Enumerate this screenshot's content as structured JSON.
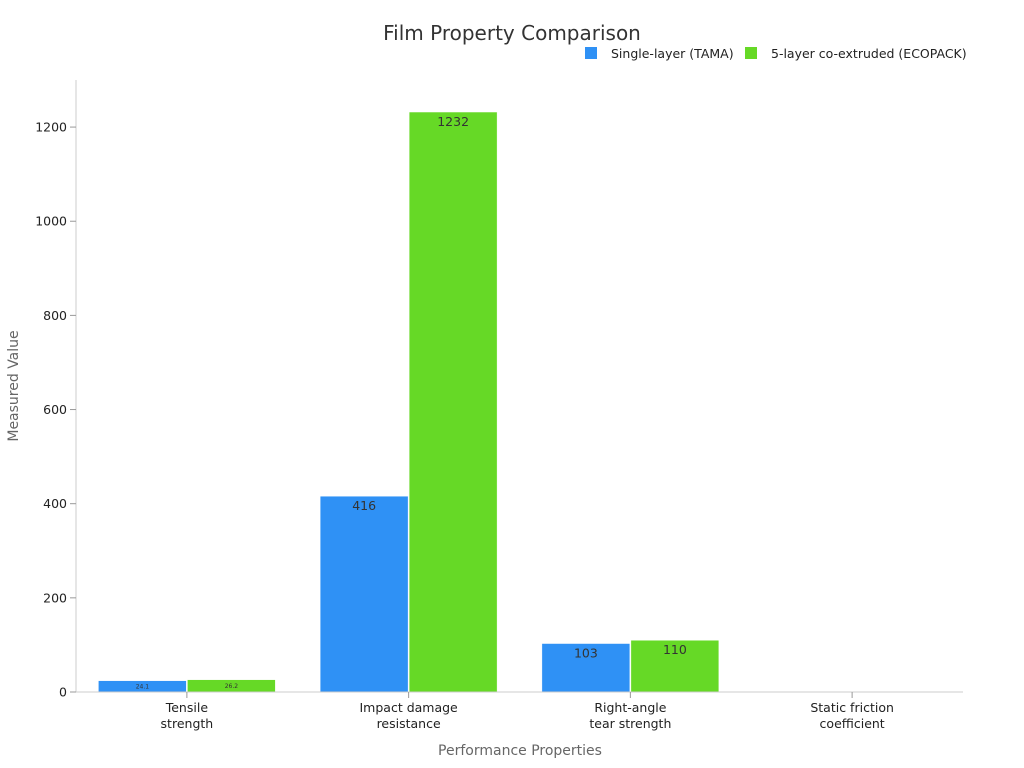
{
  "chart_data": {
    "type": "bar",
    "title": "Film Property Comparison",
    "xlabel": "Performance Properties",
    "ylabel": "Measured Value",
    "ylim": [
      0,
      1300
    ],
    "yticks": [
      0,
      200,
      400,
      600,
      800,
      1000,
      1200
    ],
    "categories": [
      [
        "Tensile",
        "strength"
      ],
      [
        "Impact damage",
        "resistance"
      ],
      [
        "Right-angle",
        "tear strength"
      ],
      [
        "Static friction",
        "coefficient"
      ]
    ],
    "series": [
      {
        "name": "Single-layer (TAMA)",
        "color": "#2f91f5",
        "values": [
          24.1,
          416,
          103,
          0.5
        ],
        "labels": [
          "24.1",
          "416",
          "103",
          ""
        ]
      },
      {
        "name": "5-layer co-extruded (ECOPACK)",
        "color": "#66d926",
        "values": [
          26.2,
          1232,
          110,
          0.4
        ],
        "labels": [
          "26.2",
          "1232",
          "110",
          ""
        ]
      }
    ],
    "legend_position": "top-right",
    "grid": false
  }
}
